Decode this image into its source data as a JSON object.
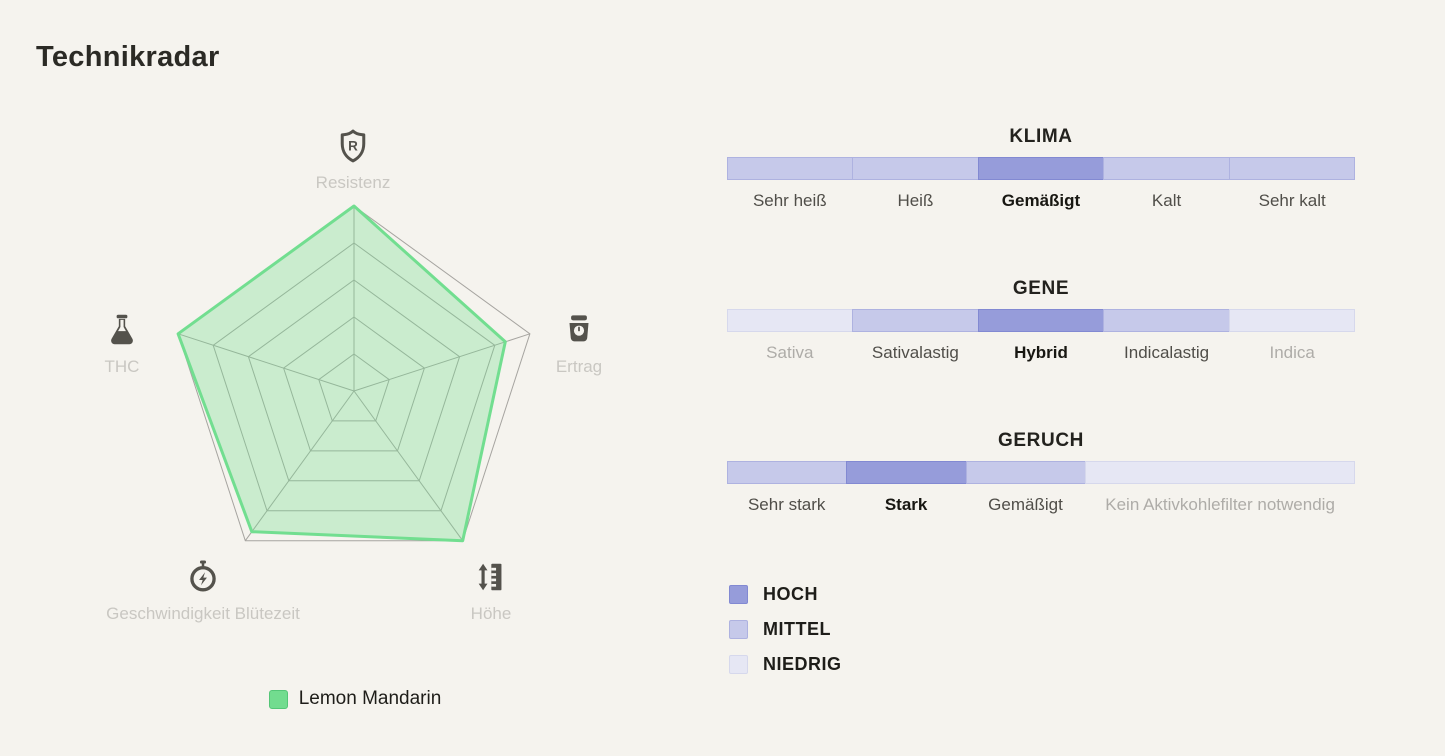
{
  "page": {
    "title": "Technikradar",
    "background": "#f5f3ee"
  },
  "chart_data": {
    "type": "radar",
    "title": "Technikradar",
    "max": 5,
    "grid_levels": 5,
    "grid_color": "#a6a4a0",
    "axes": [
      {
        "label": "Resistenz",
        "icon": "shield-r-icon",
        "value": 5
      },
      {
        "label": "Ertrag",
        "icon": "kitchen-scale-icon",
        "value": 4.3
      },
      {
        "label": "Höhe",
        "icon": "height-ruler-icon",
        "value": 5
      },
      {
        "label": "Geschwindigkeit Blütezeit",
        "icon": "stopwatch-icon",
        "value": 4.7
      },
      {
        "label": "THC",
        "icon": "flask-icon",
        "value": 5
      }
    ],
    "series": [
      {
        "name": "Lemon Mandarin",
        "values": [
          5,
          4.3,
          5,
          4.7,
          5
        ],
        "stroke": "#72de90",
        "fill": "rgba(114,222,144,0.33)"
      }
    ],
    "legend": [
      {
        "label": "Lemon Mandarin",
        "swatch_fill": "#72dc8f",
        "swatch_border": "#54c677"
      }
    ]
  },
  "scales": {
    "levels": {
      "hoch": {
        "fill": "#969cda",
        "border": "#8289d2",
        "label_color": "#181712",
        "label_weight": "600"
      },
      "mittel": {
        "fill": "#c6c9ea",
        "border": "#aeb2e0",
        "label_color": "#504e49",
        "label_weight": "500"
      },
      "niedrig": {
        "fill": "#e6e7f4",
        "border": "#d6d8ec",
        "label_color": "#aeaca8",
        "label_weight": "500"
      }
    },
    "sections": [
      {
        "title": "KLIMA",
        "segments": [
          {
            "label": "Sehr heiß",
            "level": "mittel",
            "flex": 1
          },
          {
            "label": "Heiß",
            "level": "mittel",
            "flex": 1
          },
          {
            "label": "Gemäßigt",
            "level": "hoch",
            "flex": 1
          },
          {
            "label": "Kalt",
            "level": "mittel",
            "flex": 1
          },
          {
            "label": "Sehr kalt",
            "level": "mittel",
            "flex": 1
          }
        ]
      },
      {
        "title": "GENE",
        "segments": [
          {
            "label": "Sativa",
            "level": "niedrig",
            "flex": 1
          },
          {
            "label": "Sativalastig",
            "level": "mittel",
            "flex": 1
          },
          {
            "label": "Hybrid",
            "level": "hoch",
            "flex": 1
          },
          {
            "label": "Indicalastig",
            "level": "mittel",
            "flex": 1
          },
          {
            "label": "Indica",
            "level": "niedrig",
            "flex": 1
          }
        ]
      },
      {
        "title": "GERUCH",
        "segments": [
          {
            "label": "Sehr stark",
            "level": "mittel",
            "flex": 1
          },
          {
            "label": "Stark",
            "level": "hoch",
            "flex": 1
          },
          {
            "label": "Gemäßigt",
            "level": "mittel",
            "flex": 1
          },
          {
            "label": "Kein Aktivkohlefilter notwendig",
            "level": "niedrig",
            "flex": 2.26
          }
        ]
      }
    ],
    "legend": [
      {
        "label": "HOCH",
        "level": "hoch"
      },
      {
        "label": "MITTEL",
        "level": "mittel"
      },
      {
        "label": "NIEDRIG",
        "level": "niedrig"
      }
    ]
  }
}
